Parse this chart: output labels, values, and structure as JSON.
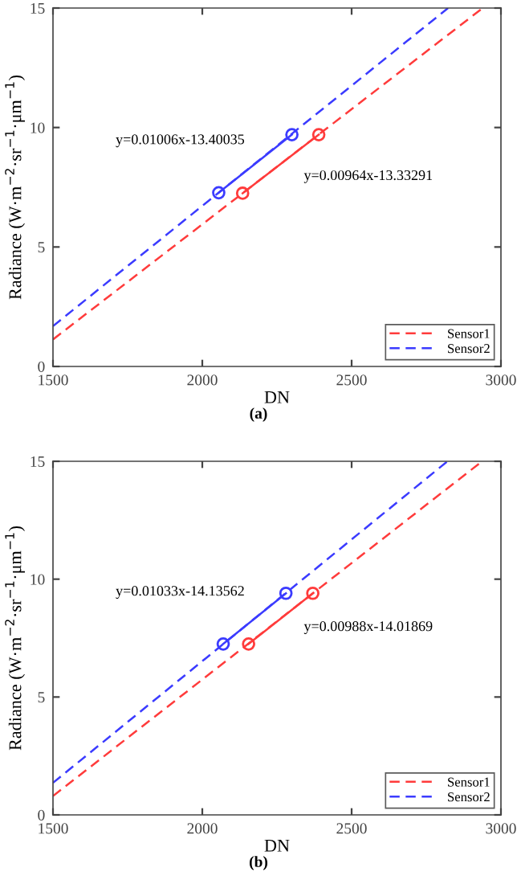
{
  "chart_data": [
    {
      "type": "line",
      "xlabel": "DN",
      "ylabel": "Radiance (W·m$^{−2}$·sr$^{−1}$·μm$^{−1}$)",
      "xlim": [
        1500,
        3000
      ],
      "ylim": [
        0,
        15
      ],
      "xticks": [
        1500,
        2000,
        2500,
        3000
      ],
      "yticks": [
        0,
        5,
        10,
        15
      ],
      "grid": false,
      "legend": "bottom right",
      "series": [
        {
          "name": "Sensor1",
          "color": "#ff3b3b",
          "line_style": "dashed",
          "marker": "none",
          "x": [
            1500,
            2939
          ],
          "values": [
            1.13,
            15
          ]
        },
        {
          "name": "Sensor2",
          "color": "#3b3bff",
          "line_style": "dashed",
          "marker": "none",
          "x": [
            1500,
            2823
          ],
          "values": [
            1.69,
            15
          ]
        },
        {
          "color": "#ff3b3b",
          "line_style": "solid",
          "marker": "circle",
          "x": [
            2135,
            2390
          ],
          "values": [
            7.25,
            9.7
          ]
        },
        {
          "color": "#3b3bff",
          "line_style": "solid",
          "marker": "circle",
          "x": [
            2055,
            2300
          ],
          "values": [
            7.27,
            9.7
          ]
        }
      ],
      "annotations": [
        "y=0.01006x-13.40035",
        "y=0.00964x-13.33291",
        "(a)"
      ]
    },
    {
      "type": "line",
      "xlabel": "DN",
      "ylabel": "Radiance (W·m$^{−2}$·sr$^{−1}$·μm$^{−1}$)",
      "xlim": [
        1500,
        3000
      ],
      "ylim": [
        0,
        15
      ],
      "xticks": [
        1500,
        2000,
        2500,
        3000
      ],
      "yticks": [
        0,
        5,
        10,
        15
      ],
      "grid": false,
      "legend": "bottom right",
      "series": [
        {
          "name": "Sensor1",
          "color": "#ff3b3b",
          "line_style": "dashed",
          "marker": "none",
          "x": [
            1500,
            2937
          ],
          "values": [
            0.8,
            15
          ]
        },
        {
          "name": "Sensor2",
          "color": "#3b3bff",
          "line_style": "dashed",
          "marker": "none",
          "x": [
            1500,
            2821
          ],
          "values": [
            1.36,
            15
          ]
        },
        {
          "color": "#ff3b3b",
          "line_style": "solid",
          "marker": "circle",
          "x": [
            2155,
            2370
          ],
          "values": [
            7.25,
            9.4
          ]
        },
        {
          "color": "#3b3bff",
          "line_style": "solid",
          "marker": "circle",
          "x": [
            2070,
            2280
          ],
          "values": [
            7.25,
            9.4
          ]
        }
      ],
      "annotations": [
        "y=0.01033x-14.13562",
        "y=0.00988x-14.01869",
        "(b)"
      ]
    }
  ]
}
